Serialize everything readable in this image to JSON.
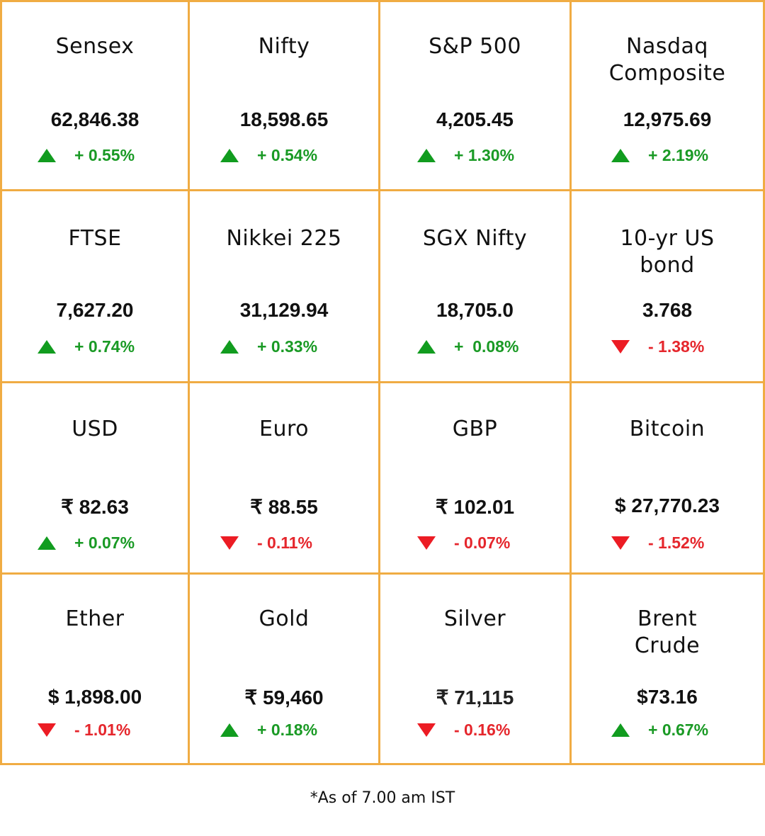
{
  "cells": [
    {
      "name": "Sensex",
      "value": "62,846.38",
      "direction": "up",
      "change": "+ 0.55%"
    },
    {
      "name": "Nifty",
      "value": "18,598.65",
      "direction": "up",
      "change": "+ 0.54%"
    },
    {
      "name": "S&P 500",
      "value": "4,205.45",
      "direction": "up",
      "change": "+ 1.30%"
    },
    {
      "name": "Nasdaq Composite",
      "value": "12,975.69",
      "direction": "up",
      "change": "+ 2.19%"
    },
    {
      "name": "FTSE",
      "value": "7,627.20",
      "direction": "up",
      "change": "+ 0.74%"
    },
    {
      "name": "Nikkei 225",
      "value": "31,129.94",
      "direction": "up",
      "change": "+ 0.33%"
    },
    {
      "name": "SGX Nifty",
      "value": "18,705.0",
      "direction": "up",
      "change": "+  0.08%"
    },
    {
      "name": "10-yr US bond",
      "value": "3.768",
      "direction": "down",
      "change": "- 1.38%"
    },
    {
      "name": "USD",
      "value": "₹ 82.63",
      "direction": "up",
      "change": "+ 0.07%"
    },
    {
      "name": "Euro",
      "value": "₹ 88.55",
      "direction": "down",
      "change": "- 0.11%"
    },
    {
      "name": "GBP",
      "value": "₹ 102.01",
      "direction": "down",
      "change": "- 0.07%"
    },
    {
      "name": "Bitcoin",
      "value": "$ 27,770.23",
      "direction": "down",
      "change": "- 1.52%"
    },
    {
      "name": "Ether",
      "value": "$ 1,898.00",
      "direction": "down",
      "change": "- 1.01%"
    },
    {
      "name": "Gold",
      "value": "₹ 59,460",
      "direction": "up",
      "change": "+ 0.18%"
    },
    {
      "name": "Silver",
      "value": "₹ 71,115",
      "direction": "down",
      "change": "- 0.16%"
    },
    {
      "name": "Brent Crude",
      "value": "$73.16",
      "direction": "up",
      "change": "+ 0.67%"
    }
  ],
  "footnote": "*As of 7.00 am IST",
  "colors": {
    "border": "#f0ac43",
    "up": "#1a9a25",
    "down": "#e5262c"
  }
}
